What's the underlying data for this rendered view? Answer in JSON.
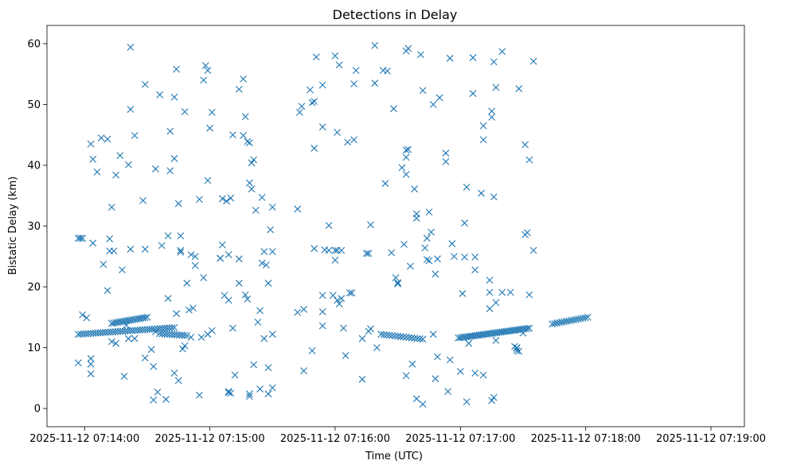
{
  "chart_data": {
    "type": "scatter",
    "title": "Detections in Delay",
    "xlabel": "Time (UTC)",
    "ylabel": "Bistatic Delay (km)",
    "marker": "x",
    "color": "#1f77b4",
    "x_unit": "seconds after 2025-11-12 07:13:00",
    "xlim": [
      42,
      376
    ],
    "ylim": [
      -3,
      63
    ],
    "xticks": [
      {
        "value": 60,
        "label": "2025-11-12 07:14:00"
      },
      {
        "value": 120,
        "label": "2025-11-12 07:15:00"
      },
      {
        "value": 180,
        "label": "2025-11-12 07:16:00"
      },
      {
        "value": 240,
        "label": "2025-11-12 07:17:00"
      },
      {
        "value": 300,
        "label": "2025-11-12 07:18:00"
      },
      {
        "value": 360,
        "label": "2025-11-12 07:19:00"
      }
    ],
    "yticks": [
      {
        "value": 0,
        "label": "0"
      },
      {
        "value": 10,
        "label": "10"
      },
      {
        "value": 20,
        "label": "20"
      },
      {
        "value": 30,
        "label": "30"
      },
      {
        "value": 40,
        "label": "40"
      },
      {
        "value": 50,
        "label": "50"
      },
      {
        "value": 60,
        "label": "60"
      }
    ],
    "track1": {
      "x_start": 57,
      "x_end": 103,
      "y_start": 12.2,
      "y_end": 13.3,
      "count": 40
    },
    "track2": {
      "x_start": 73,
      "x_end": 90,
      "y_start": 14.0,
      "y_end": 15.0,
      "count": 18
    },
    "track3": {
      "x_start": 96,
      "x_end": 109,
      "y_start": 12.3,
      "y_end": 12.0,
      "count": 12
    },
    "track4": {
      "x_start": 202,
      "x_end": 222,
      "y_start": 12.2,
      "y_end": 11.4,
      "count": 16
    },
    "track5": {
      "x_start": 239,
      "x_end": 273,
      "y_start": 11.6,
      "y_end": 13.2,
      "count": 38
    },
    "track6": {
      "x_start": 284,
      "x_end": 301,
      "y_start": 13.9,
      "y_end": 15.0,
      "count": 16
    },
    "scatter_points": [
      [
        57,
        28
      ],
      [
        58,
        28
      ],
      [
        59,
        28
      ],
      [
        57,
        7.5
      ],
      [
        59,
        15.4
      ],
      [
        61,
        14.9
      ],
      [
        63,
        43.5
      ],
      [
        64,
        41
      ],
      [
        63,
        8.2
      ],
      [
        63,
        7.3
      ],
      [
        63,
        5.7
      ],
      [
        64,
        27.2
      ],
      [
        66,
        38.9
      ],
      [
        68,
        44.5
      ],
      [
        69,
        23.7
      ],
      [
        71,
        44.3
      ],
      [
        71,
        19.4
      ],
      [
        72,
        27.9
      ],
      [
        72,
        25.9
      ],
      [
        73,
        33.1
      ],
      [
        74,
        25.9
      ],
      [
        73,
        11
      ],
      [
        75,
        38.4
      ],
      [
        75,
        10.7
      ],
      [
        77,
        41.6
      ],
      [
        78,
        22.8
      ],
      [
        79,
        5.3
      ],
      [
        80,
        13.7
      ],
      [
        81,
        11.5
      ],
      [
        81,
        40.1
      ],
      [
        82,
        26.2
      ],
      [
        82,
        59.4
      ],
      [
        82,
        49.2
      ],
      [
        84,
        44.9
      ],
      [
        84,
        11.5
      ],
      [
        88,
        34.2
      ],
      [
        89,
        53.3
      ],
      [
        89,
        26.2
      ],
      [
        89,
        8.3
      ],
      [
        92,
        9.7
      ],
      [
        93,
        1.4
      ],
      [
        94,
        39.4
      ],
      [
        93,
        6.9
      ],
      [
        94,
        12.6
      ],
      [
        95,
        2.7
      ],
      [
        96,
        51.6
      ],
      [
        97,
        26.8
      ],
      [
        99,
        1.5
      ],
      [
        100,
        18.1
      ],
      [
        100,
        28.4
      ],
      [
        101,
        45.6
      ],
      [
        101,
        39.1
      ],
      [
        103,
        41.1
      ],
      [
        103,
        51.2
      ],
      [
        104,
        55.8
      ],
      [
        104,
        15.6
      ],
      [
        103,
        5.8
      ],
      [
        105,
        4.6
      ],
      [
        105,
        33.7
      ],
      [
        106,
        28.4
      ],
      [
        106,
        25.7
      ],
      [
        106,
        26
      ],
      [
        107,
        9.8
      ],
      [
        108,
        10.3
      ],
      [
        108,
        48.8
      ],
      [
        109,
        20.6
      ],
      [
        110,
        16.2
      ],
      [
        111,
        25.3
      ],
      [
        111,
        11.7
      ],
      [
        112,
        16.5
      ],
      [
        113,
        25
      ],
      [
        113,
        23.5
      ],
      [
        115,
        2.2
      ],
      [
        115,
        34.4
      ],
      [
        116,
        11.7
      ],
      [
        117,
        21.5
      ],
      [
        117,
        54
      ],
      [
        118,
        56.4
      ],
      [
        119,
        55.6
      ],
      [
        119,
        37.5
      ],
      [
        119,
        12.2
      ],
      [
        120,
        46.1
      ],
      [
        121,
        48.7
      ],
      [
        121,
        12.8
      ],
      [
        125,
        24.7
      ],
      [
        125,
        24.7
      ],
      [
        126,
        34.5
      ],
      [
        126,
        26.9
      ],
      [
        127,
        18.6
      ],
      [
        128,
        34.1
      ],
      [
        129,
        17.8
      ],
      [
        129,
        25.3
      ],
      [
        129,
        2.6
      ],
      [
        129,
        2.8
      ],
      [
        130,
        34.6
      ],
      [
        130,
        2.5
      ],
      [
        131,
        45
      ],
      [
        131,
        13.2
      ],
      [
        132,
        5.5
      ],
      [
        134,
        24.6
      ],
      [
        134,
        20.6
      ],
      [
        134,
        52.5
      ],
      [
        136,
        54.2
      ],
      [
        136,
        44.9
      ],
      [
        137,
        18.7
      ],
      [
        137,
        48
      ],
      [
        138,
        18
      ],
      [
        138,
        43.9
      ],
      [
        139,
        43.7
      ],
      [
        139,
        37.1
      ],
      [
        139,
        2
      ],
      [
        139,
        2.4
      ],
      [
        140,
        36.1
      ],
      [
        140,
        40.4
      ],
      [
        141,
        40.9
      ],
      [
        141,
        7.2
      ],
      [
        142,
        32.6
      ],
      [
        143,
        14.2
      ],
      [
        144,
        16.1
      ],
      [
        144,
        3.2
      ],
      [
        145,
        34.7
      ],
      [
        145,
        23.9
      ],
      [
        146,
        25.8
      ],
      [
        146,
        11.5
      ],
      [
        147,
        23.6
      ],
      [
        148,
        20.6
      ],
      [
        148,
        6.7
      ],
      [
        148,
        2.4
      ],
      [
        149,
        29.4
      ],
      [
        150,
        33.1
      ],
      [
        150,
        25.8
      ],
      [
        150,
        12.2
      ],
      [
        150,
        3.4
      ],
      [
        162,
        32.8
      ],
      [
        162,
        15.8
      ],
      [
        163,
        48.7
      ],
      [
        164,
        49.7
      ],
      [
        165,
        16.3
      ],
      [
        165,
        6.2
      ],
      [
        168,
        52.4
      ],
      [
        169,
        9.5
      ],
      [
        169,
        50.3
      ],
      [
        170,
        42.8
      ],
      [
        171,
        57.8
      ],
      [
        170,
        50.5
      ],
      [
        170,
        26.3
      ],
      [
        174,
        53.2
      ],
      [
        174,
        46.3
      ],
      [
        174,
        18.6
      ],
      [
        174,
        15.9
      ],
      [
        174,
        13.6
      ],
      [
        175,
        26.1
      ],
      [
        177,
        30.1
      ],
      [
        177,
        26
      ],
      [
        179,
        18.6
      ],
      [
        180,
        58
      ],
      [
        180,
        24.4
      ],
      [
        180,
        26
      ],
      [
        181,
        45.4
      ],
      [
        181,
        26
      ],
      [
        181,
        17.8
      ],
      [
        182,
        56.5
      ],
      [
        182,
        17.2
      ],
      [
        183,
        26
      ],
      [
        183,
        18.1
      ],
      [
        184,
        13.2
      ],
      [
        185,
        8.7
      ],
      [
        186,
        43.8
      ],
      [
        187,
        19
      ],
      [
        188,
        19
      ],
      [
        189,
        53.4
      ],
      [
        189,
        44.2
      ],
      [
        190,
        55.6
      ],
      [
        193,
        11.5
      ],
      [
        193,
        4.8
      ],
      [
        195,
        25.5
      ],
      [
        196,
        25.5
      ],
      [
        196,
        12.7
      ],
      [
        197,
        30.2
      ],
      [
        197,
        13.1
      ],
      [
        199,
        59.7
      ],
      [
        199,
        53.5
      ],
      [
        200,
        10
      ],
      [
        203,
        55.6
      ],
      [
        204,
        37
      ],
      [
        205,
        55.5
      ],
      [
        207,
        25.6
      ],
      [
        208,
        49.3
      ],
      [
        209,
        21.5
      ],
      [
        210,
        20.7
      ],
      [
        210,
        20.5
      ],
      [
        212,
        39.6
      ],
      [
        213,
        27
      ],
      [
        214,
        42.5
      ],
      [
        214,
        38.5
      ],
      [
        214,
        41.3
      ],
      [
        214,
        5.4
      ],
      [
        214,
        58.8
      ],
      [
        215,
        59.2
      ],
      [
        215,
        42.6
      ],
      [
        216,
        23.4
      ],
      [
        217,
        7.3
      ],
      [
        218,
        36.1
      ],
      [
        219,
        31.3
      ],
      [
        219,
        32
      ],
      [
        219,
        1.6
      ],
      [
        221,
        58.2
      ],
      [
        222,
        52.3
      ],
      [
        222,
        0.7
      ],
      [
        223,
        26.4
      ],
      [
        224,
        28
      ],
      [
        224,
        24.5
      ],
      [
        225,
        32.3
      ],
      [
        225,
        24.3
      ],
      [
        226,
        29
      ],
      [
        227,
        50
      ],
      [
        227,
        12.2
      ],
      [
        228,
        22.1
      ],
      [
        228,
        4.9
      ],
      [
        229,
        8.5
      ],
      [
        229,
        24.6
      ],
      [
        230,
        51.1
      ],
      [
        233,
        42
      ],
      [
        233,
        40.6
      ],
      [
        234,
        2.8
      ],
      [
        235,
        8
      ],
      [
        235,
        57.6
      ],
      [
        236,
        27.1
      ],
      [
        237,
        25
      ],
      [
        240,
        6.1
      ],
      [
        241,
        18.9
      ],
      [
        242,
        30.5
      ],
      [
        242,
        24.9
      ],
      [
        243,
        1.1
      ],
      [
        243,
        36.4
      ],
      [
        244,
        10.7
      ],
      [
        246,
        57.7
      ],
      [
        246,
        51.8
      ],
      [
        247,
        5.8
      ],
      [
        247,
        24.9
      ],
      [
        247,
        22.8
      ],
      [
        250,
        35.4
      ],
      [
        251,
        46.5
      ],
      [
        251,
        44.2
      ],
      [
        251,
        5.5
      ],
      [
        254,
        21.1
      ],
      [
        254,
        19.1
      ],
      [
        254,
        16.4
      ],
      [
        255,
        48.9
      ],
      [
        255,
        47.9
      ],
      [
        255,
        1.3
      ],
      [
        256,
        57
      ],
      [
        256,
        34.8
      ],
      [
        256,
        1.8
      ],
      [
        257,
        52.8
      ],
      [
        257,
        17.4
      ],
      [
        257,
        11.2
      ],
      [
        260,
        58.7
      ],
      [
        260,
        19.1
      ],
      [
        264,
        19.1
      ],
      [
        266,
        10.2
      ],
      [
        267,
        10
      ],
      [
        267,
        9.9
      ],
      [
        267,
        9.5
      ],
      [
        268,
        9.4
      ],
      [
        268,
        52.6
      ],
      [
        270,
        12.4
      ],
      [
        271,
        28.6
      ],
      [
        271,
        43.4
      ],
      [
        272,
        28.9
      ],
      [
        273,
        40.9
      ],
      [
        273,
        18.7
      ],
      [
        275,
        57.1
      ],
      [
        275,
        26
      ]
    ]
  }
}
